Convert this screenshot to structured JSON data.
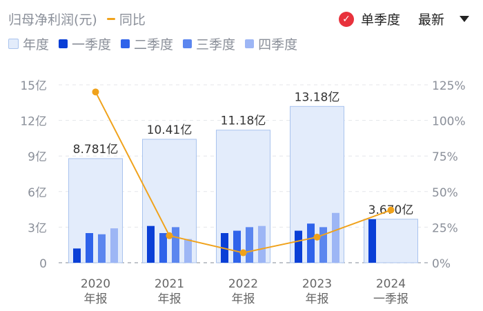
{
  "header": {
    "title": "归母净利润(元)",
    "yoy_legend": "同比",
    "mode_label": "单季度",
    "sort_label": "最新",
    "check_icon": "check-icon",
    "dropdown_icon": "caret-down-icon"
  },
  "legend": [
    {
      "name": "年度",
      "color": "#e3ecfb",
      "border": "#a9c3ee"
    },
    {
      "name": "一季度",
      "color": "#0a3fd6"
    },
    {
      "name": "二季度",
      "color": "#2f63ea"
    },
    {
      "name": "三季度",
      "color": "#5b86ef"
    },
    {
      "name": "四季度",
      "color": "#9db6f5"
    }
  ],
  "colors": {
    "yoy": "#f0a21b",
    "annual": "#e3ecfb",
    "annual_border": "#a9c3ee"
  },
  "chart_data": {
    "type": "bar",
    "categories": [
      [
        "2020",
        "年报"
      ],
      [
        "2021",
        "年报"
      ],
      [
        "2022",
        "年报"
      ],
      [
        "2023",
        "年报"
      ],
      [
        "2024",
        "一季报"
      ]
    ],
    "annual": {
      "values": [
        8.781,
        10.41,
        11.18,
        13.18,
        3.67
      ],
      "labels": [
        "8.781亿",
        "10.41亿",
        "11.18亿",
        "13.18亿",
        "3.670亿"
      ]
    },
    "series": [
      {
        "name": "一季度",
        "values": [
          1.2,
          3.1,
          2.5,
          2.7,
          3.67
        ]
      },
      {
        "name": "二季度",
        "values": [
          2.5,
          2.5,
          2.7,
          3.3,
          null
        ]
      },
      {
        "name": "三季度",
        "values": [
          2.4,
          3.0,
          3.0,
          3.0,
          null
        ]
      },
      {
        "name": "四季度",
        "values": [
          2.9,
          2.0,
          3.1,
          4.2,
          null
        ]
      }
    ],
    "yoy": {
      "name": "同比",
      "values": [
        120,
        19,
        7,
        18,
        37
      ]
    },
    "ylim": [
      0,
      15
    ],
    "y_ticks": [
      0,
      3,
      6,
      9,
      12,
      15
    ],
    "y_tick_labels": [
      "0",
      "3亿",
      "6亿",
      "9亿",
      "12亿",
      "15亿"
    ],
    "y2lim": [
      0,
      125
    ],
    "y2_ticks": [
      0,
      25,
      50,
      75,
      100,
      125
    ],
    "y2_tick_labels": [
      "0%",
      "25%",
      "50%",
      "75%",
      "100%",
      "125%"
    ],
    "grid": true
  }
}
